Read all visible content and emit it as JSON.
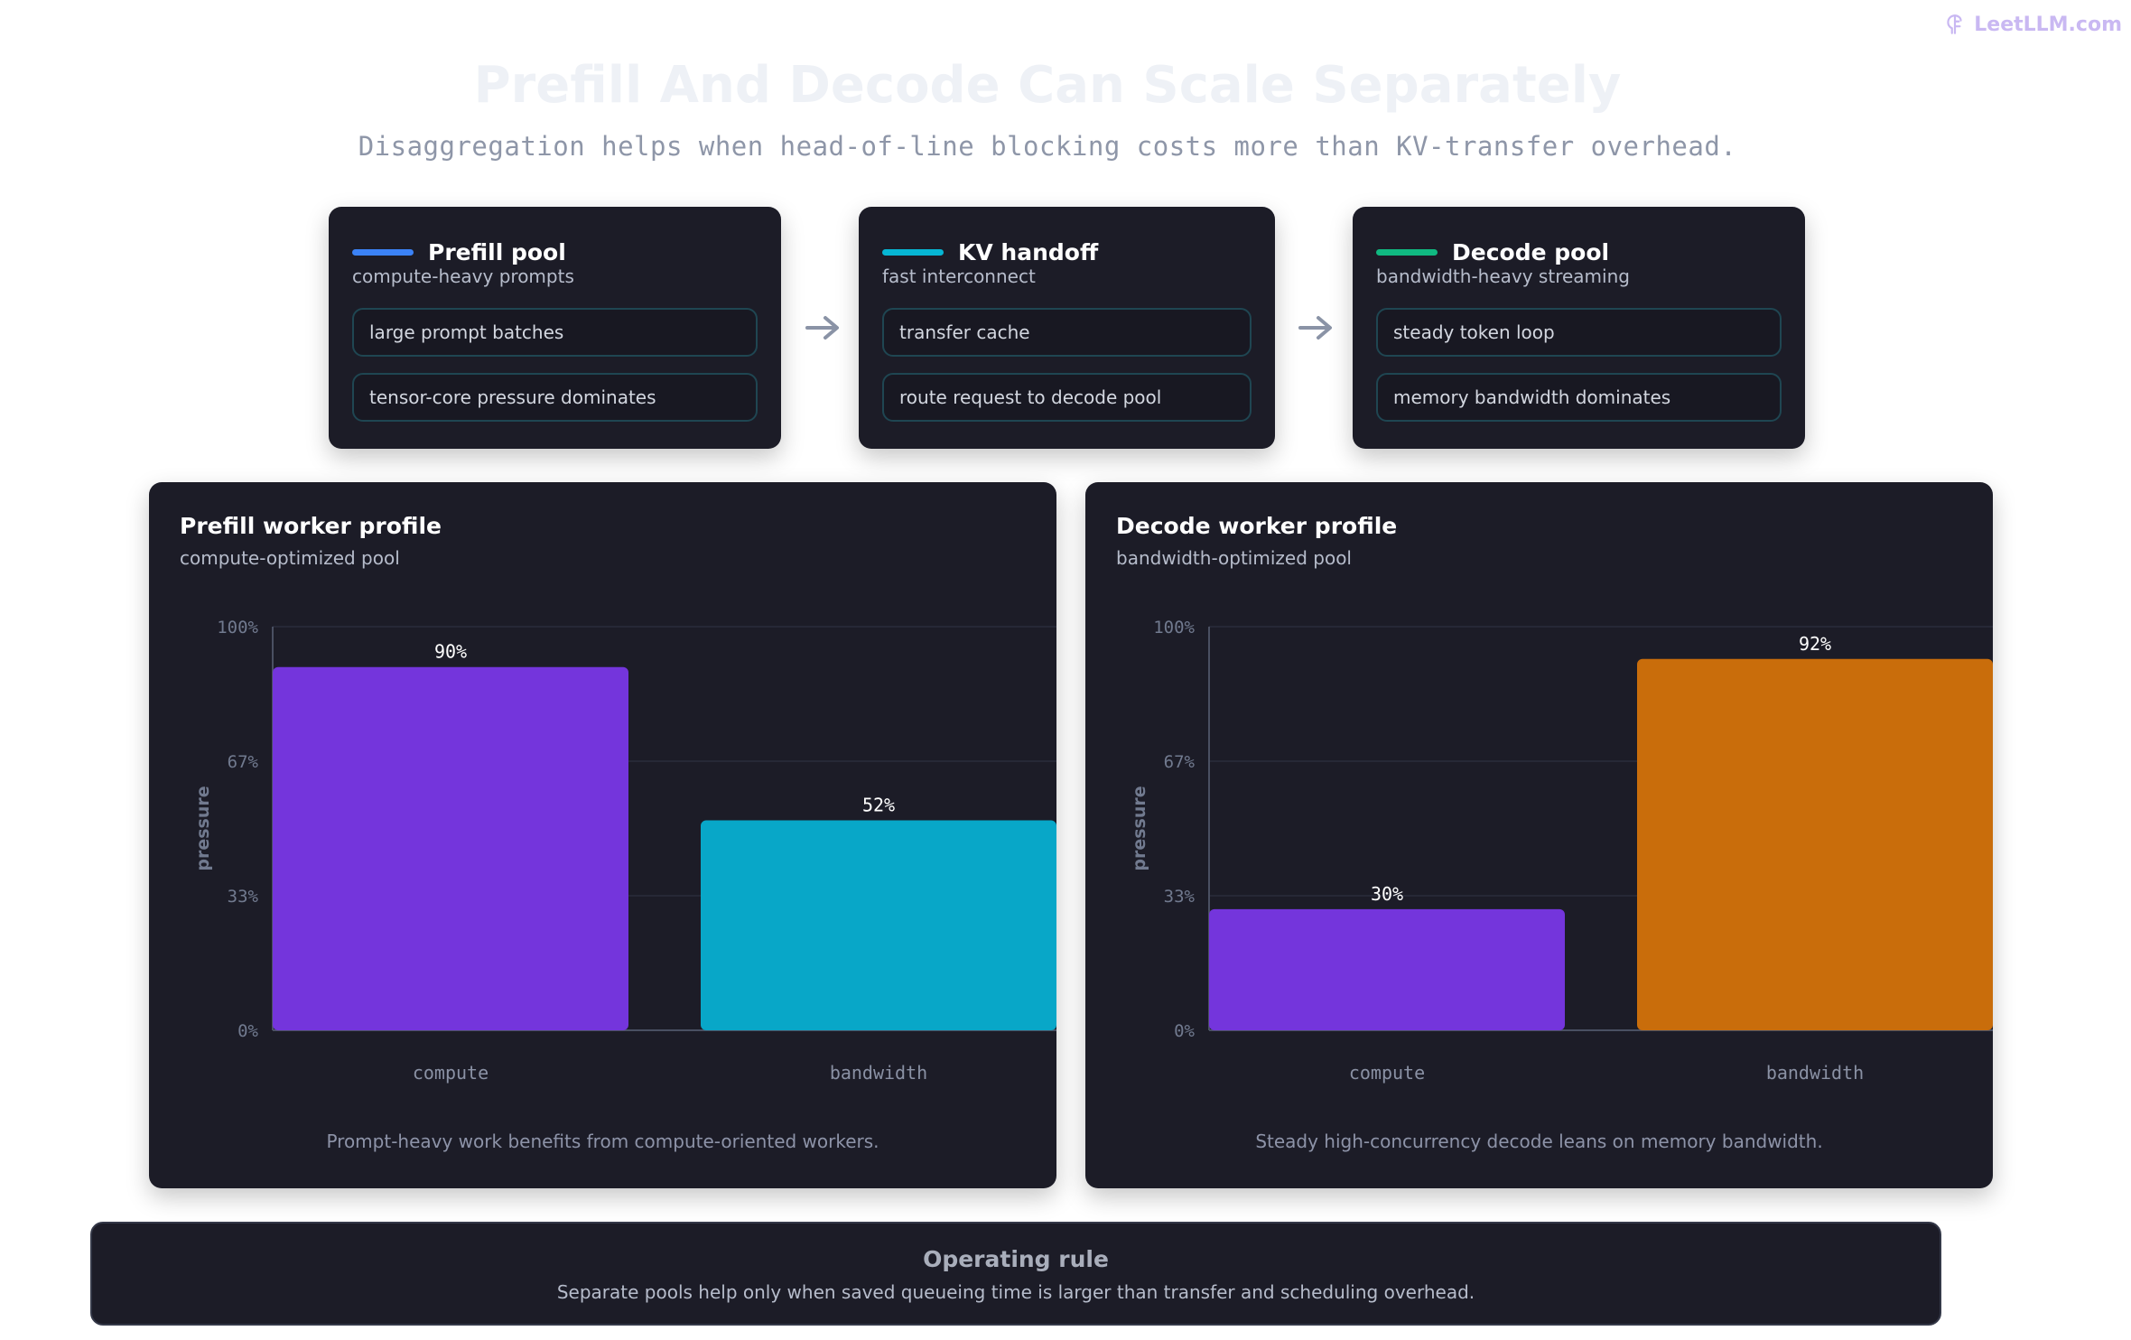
{
  "brand": {
    "text": "LeetLLM.com",
    "icon": "brain-logo-icon"
  },
  "header": {
    "title": "Prefill And Decode Can Scale Separately",
    "subtitle": "Disaggregation helps when head-of-line blocking costs more than KV-transfer overhead."
  },
  "flow": [
    {
      "title": "Prefill pool",
      "subtitle": "compute-heavy prompts",
      "accent": "#3b82f6",
      "items": [
        "large prompt batches",
        "tensor-core pressure dominates"
      ]
    },
    {
      "title": "KV handoff",
      "subtitle": "fast interconnect",
      "accent": "#06b6d4",
      "items": [
        "transfer cache",
        "route request to decode pool"
      ]
    },
    {
      "title": "Decode pool",
      "subtitle": "bandwidth-heavy streaming",
      "accent": "#10b981",
      "items": [
        "steady token loop",
        "memory bandwidth dominates"
      ]
    }
  ],
  "flow_arrow_icon": "arrow-right-icon",
  "chart_data": [
    {
      "type": "bar",
      "title": "Prefill worker profile",
      "subtitle": "compute-optimized pool",
      "categories": [
        "compute",
        "bandwidth"
      ],
      "values": [
        90,
        52
      ],
      "value_labels": [
        "90%",
        "52%"
      ],
      "colors": [
        "#7435dc",
        "#08a7c8"
      ],
      "ylabel": "pressure",
      "ylim": [
        0,
        100
      ],
      "yticks": [
        "0%",
        "33%",
        "67%",
        "100%"
      ],
      "grid": true,
      "note": "Prompt-heavy work benefits from compute-oriented workers."
    },
    {
      "type": "bar",
      "title": "Decode worker profile",
      "subtitle": "bandwidth-optimized pool",
      "categories": [
        "compute",
        "bandwidth"
      ],
      "values": [
        30,
        92
      ],
      "value_labels": [
        "30%",
        "92%"
      ],
      "colors": [
        "#7435dc",
        "#c96d0b"
      ],
      "ylabel": "pressure",
      "ylim": [
        0,
        100
      ],
      "yticks": [
        "0%",
        "33%",
        "67%",
        "100%"
      ],
      "grid": true,
      "note": "Steady high-concurrency decode leans on memory bandwidth."
    }
  ],
  "operating_rule": {
    "title": "Operating rule",
    "text": "Separate pools help only when saved queueing time is larger than transfer and scheduling overhead."
  }
}
